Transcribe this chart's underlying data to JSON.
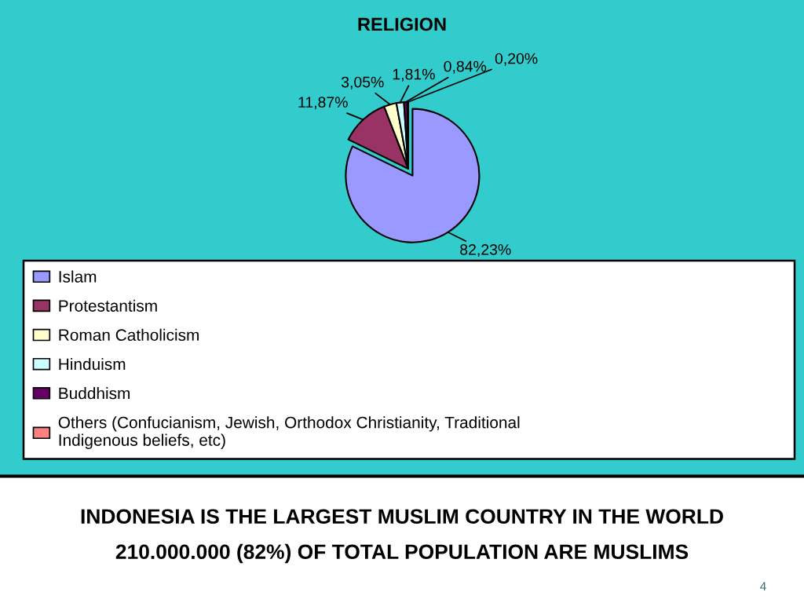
{
  "chart_data": {
    "type": "pie",
    "title": "RELIGION",
    "categories": [
      "Islam",
      "Protestantism",
      "Roman Catholicism",
      "Hinduism",
      "Buddhism",
      "Others (Confucianism, Jewish, Orthodox Christianity, Traditional Indigenous beliefs, etc)"
    ],
    "values": [
      82.23,
      11.87,
      3.05,
      1.81,
      0.84,
      0.2
    ],
    "colors": [
      "#9999ff",
      "#993366",
      "#ffffcc",
      "#ccffff",
      "#660066",
      "#ff8080"
    ],
    "value_labels": [
      "82,23%",
      "11,87%",
      "3,05%",
      "1,81%",
      "0,84%",
      "0,20%"
    ],
    "legend": "bottom",
    "annotations": [
      "INDONESIA IS THE LARGEST MUSLIM COUNTRY IN THE WORLD",
      "210.000.000 (82%) OF TOTAL POPULATION ARE MUSLIMS",
      "4"
    ]
  }
}
